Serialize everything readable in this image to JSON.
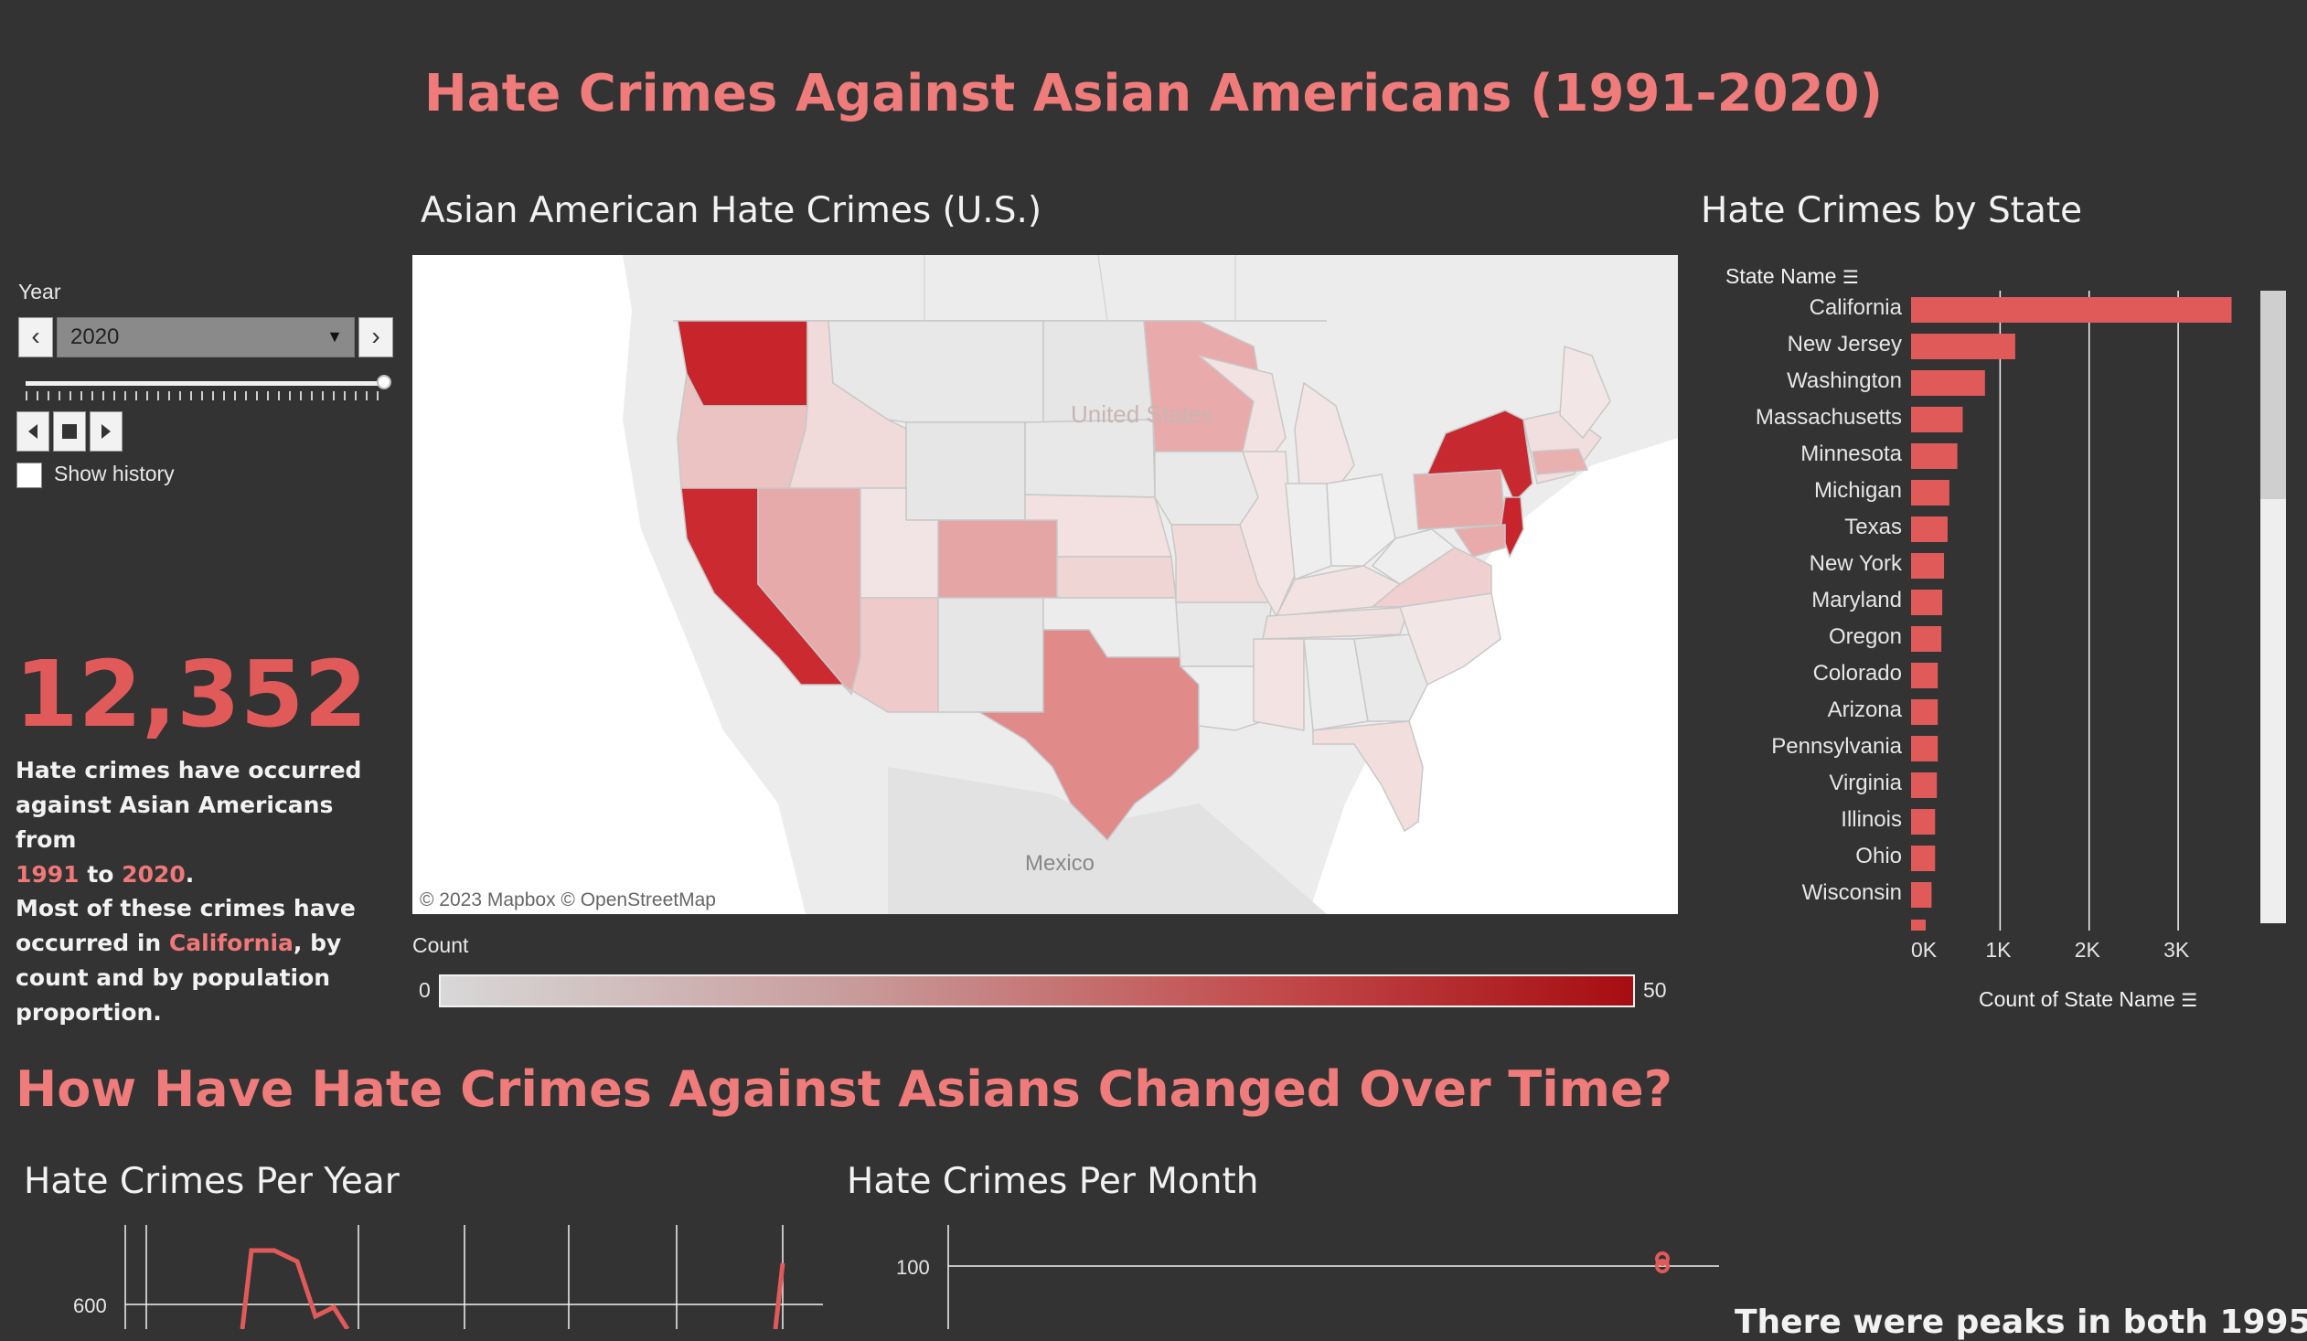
{
  "dashboard": {
    "title": "Hate Crimes Against Asian Americans (1991-2020)"
  },
  "filter": {
    "label": "Year",
    "selected_year": "2020",
    "show_history_label": "Show history"
  },
  "summary": {
    "total": "12,352",
    "line1": "Hate crimes have occurred against Asian Americans from",
    "year_start": "1991",
    "to_word": "to",
    "year_end": "2020",
    "line2": "Most of these crimes have occurred in",
    "top_state": "California",
    "line3": ", by count and by population proportion."
  },
  "map": {
    "title": "Asian American Hate Crimes (U.S.)",
    "country_label": "United States",
    "mexico_label": "Mexico",
    "attribution": "© 2023 Mapbox  © OpenStreetMap",
    "legend": {
      "label": "Count",
      "min": "0",
      "max": "50",
      "color_low": "#d8d8d8",
      "color_high": "#a60d12"
    }
  },
  "bar_chart": {
    "title": "Hate Crimes by State",
    "axis_header": "State Name",
    "x_axis_label": "Count of State Name",
    "bar_color": "#e05a5a",
    "chart_data": {
      "type": "bar",
      "orientation": "horizontal",
      "categories": [
        "California",
        "New Jersey",
        "Washington",
        "Massachusetts",
        "Minnesota",
        "Michigan",
        "Texas",
        "New York",
        "Maryland",
        "Oregon",
        "Colorado",
        "Arizona",
        "Pennsylvania",
        "Virginia",
        "Illinois",
        "Ohio",
        "Wisconsin"
      ],
      "values": [
        3600,
        1170,
        830,
        580,
        520,
        430,
        410,
        370,
        350,
        340,
        300,
        300,
        300,
        290,
        270,
        270,
        230
      ],
      "xlim": [
        0,
        3800
      ],
      "xticks": [
        "0K",
        "1K",
        "2K",
        "3K"
      ],
      "xtick_values": [
        0,
        1000,
        2000,
        3000
      ],
      "grid": true
    }
  },
  "section2": {
    "title": "How Have Hate Crimes Against Asians Changed Over Time?",
    "per_year_title": "Hate Crimes Per Year",
    "per_month_title": "Hate Crimes Per Month",
    "per_year_tick": "600",
    "per_month_tick": "100",
    "peak_text": "There were peaks in both 1995"
  }
}
